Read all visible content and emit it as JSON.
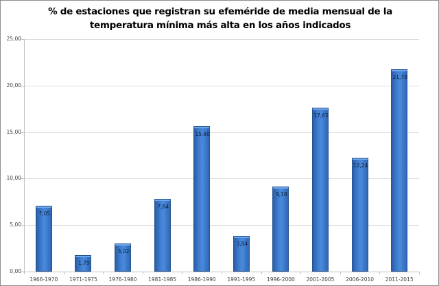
{
  "chart_data": {
    "type": "bar",
    "title": "% de estaciones que registran su efeméride de media mensual de la temperatura mínima más alta en los años indicados",
    "title_lines": [
      "% de estaciones que registran su efeméride de media mensual de la",
      "temperatura mínima más alta en los años indicados"
    ],
    "xlabel": "",
    "ylabel": "",
    "categories": [
      "1966-1970",
      "1971-1975",
      "1976-1980",
      "1981-1985",
      "1986-1990",
      "1991-1995",
      "1996-2000",
      "2001-2005",
      "2006-2010",
      "2011-2015"
    ],
    "values": [
      7.05,
      1.79,
      3.02,
      7.84,
      15.6,
      3.84,
      9.18,
      17.65,
      12.24,
      21.79
    ],
    "value_labels": [
      "7,05",
      "1,79",
      "3,02",
      "7,84",
      "15,60",
      "3,84",
      "9,18",
      "17,65",
      "12,24",
      "21,79"
    ],
    "ylim": [
      0,
      25
    ],
    "yticks": [
      0,
      5,
      10,
      15,
      20,
      25
    ],
    "ytick_labels": [
      "0,00",
      "5,00",
      "10,00",
      "15,00",
      "20,00",
      "25,00"
    ],
    "grid": true,
    "legend": null,
    "bar_color": "#3a78c9"
  }
}
